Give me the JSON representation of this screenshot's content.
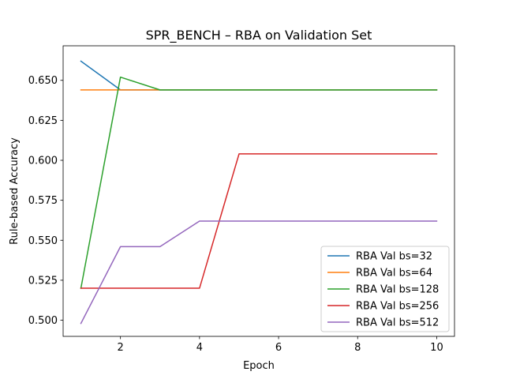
{
  "chart_data": {
    "type": "line",
    "title": "SPR_BENCH – RBA on Validation Set",
    "xlabel": "Epoch",
    "ylabel": "Rule-based Accuracy",
    "xlim": [
      0.55,
      10.45
    ],
    "ylim": [
      0.4899,
      0.6716
    ],
    "xticks": [
      2,
      4,
      6,
      8,
      10
    ],
    "xtick_labels": [
      "2",
      "4",
      "6",
      "8",
      "10"
    ],
    "yticks": [
      0.5,
      0.525,
      0.55,
      0.575,
      0.6,
      0.625,
      0.65
    ],
    "ytick_labels": [
      "0.500",
      "0.525",
      "0.550",
      "0.575",
      "0.600",
      "0.625",
      "0.650"
    ],
    "grid": false,
    "legend_position": "lower-right",
    "x": [
      1,
      2,
      3,
      4,
      5,
      6,
      7,
      8,
      9,
      10
    ],
    "series": [
      {
        "name": "RBA Val bs=32",
        "color": "#1f77b4",
        "values": [
          0.662,
          0.644,
          0.644,
          0.644,
          0.644,
          0.644,
          0.644,
          0.644,
          0.644,
          0.644
        ]
      },
      {
        "name": "RBA Val bs=64",
        "color": "#ff7f0e",
        "values": [
          0.644,
          0.644,
          0.644,
          0.644,
          0.644,
          0.644,
          0.644,
          0.644,
          0.644,
          0.644
        ]
      },
      {
        "name": "RBA Val bs=128",
        "color": "#2ca02c",
        "values": [
          0.52,
          0.652,
          0.644,
          0.644,
          0.644,
          0.644,
          0.644,
          0.644,
          0.644,
          0.644
        ]
      },
      {
        "name": "RBA Val bs=256",
        "color": "#d62728",
        "values": [
          0.52,
          0.52,
          0.52,
          0.52,
          0.604,
          0.604,
          0.604,
          0.604,
          0.604,
          0.604
        ]
      },
      {
        "name": "RBA Val bs=512",
        "color": "#9467bd",
        "values": [
          0.498,
          0.546,
          0.546,
          0.562,
          0.562,
          0.562,
          0.562,
          0.562,
          0.562,
          0.562
        ]
      }
    ]
  }
}
